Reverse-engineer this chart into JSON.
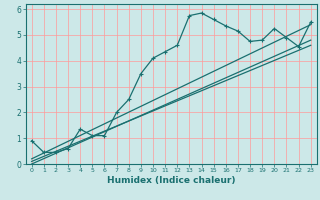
{
  "xlabel": "Humidex (Indice chaleur)",
  "bg_color": "#cce8e8",
  "grid_color": "#ff9999",
  "line_color": "#1a7070",
  "xlim": [
    -0.5,
    23.5
  ],
  "ylim": [
    0,
    6.2
  ],
  "xticks": [
    0,
    1,
    2,
    3,
    4,
    5,
    6,
    7,
    8,
    9,
    10,
    11,
    12,
    13,
    14,
    15,
    16,
    17,
    18,
    19,
    20,
    21,
    22,
    23
  ],
  "yticks": [
    0,
    1,
    2,
    3,
    4,
    5,
    6
  ],
  "curve_x": [
    0,
    1,
    2,
    3,
    4,
    5,
    6,
    7,
    8,
    9,
    10,
    11,
    12,
    13,
    14,
    15,
    16,
    17,
    18,
    19,
    20,
    21,
    22,
    23
  ],
  "curve_y": [
    0.9,
    0.45,
    0.45,
    0.6,
    1.35,
    1.1,
    1.1,
    2.0,
    2.5,
    3.5,
    4.1,
    4.35,
    4.6,
    5.75,
    5.85,
    5.6,
    5.35,
    5.15,
    4.75,
    4.8,
    5.25,
    4.9,
    4.55,
    5.5
  ],
  "line1_x": [
    0,
    23
  ],
  "line1_y": [
    0.0,
    4.8
  ],
  "line2_x": [
    0,
    23
  ],
  "line2_y": [
    0.1,
    4.6
  ],
  "line3_x": [
    0,
    23
  ],
  "line3_y": [
    0.2,
    5.4
  ]
}
